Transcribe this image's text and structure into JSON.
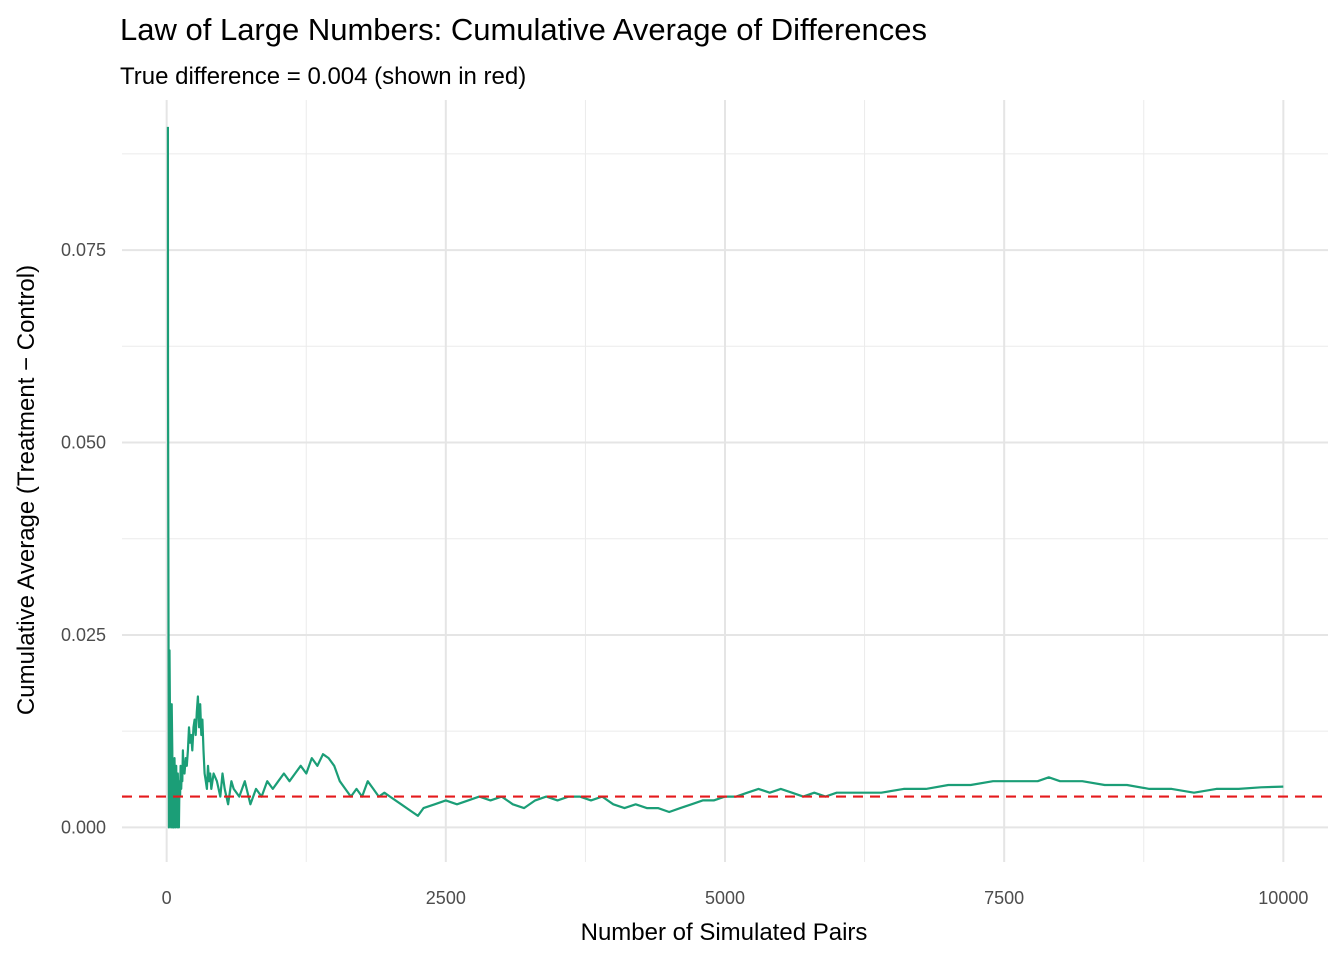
{
  "chart_data": {
    "type": "line",
    "title": "Law of Large Numbers: Cumulative Average of Differences",
    "subtitle": "True difference = 0.004 (shown in red)",
    "xlabel": "Number of Simulated Pairs",
    "ylabel": "Cumulative Average (Treatment − Control)",
    "xlim": [
      -400,
      10400
    ],
    "ylim": [
      -0.0045,
      0.0945
    ],
    "x_ticks": [
      0,
      2500,
      5000,
      7500,
      10000
    ],
    "x_tick_labels": [
      "0",
      "2500",
      "5000",
      "7500",
      "10000"
    ],
    "y_ticks": [
      0,
      0.025,
      0.05,
      0.075
    ],
    "y_tick_labels": [
      "0.000",
      "0.025",
      "0.050",
      "0.075"
    ],
    "grid": true,
    "legend": "none",
    "reference_line": {
      "y": 0.004,
      "color": "#e41a1c",
      "style": "dashed"
    },
    "series": [
      {
        "color": "#1b9e77",
        "x": [
          11,
          12,
          15,
          20,
          25,
          30,
          35,
          40,
          45,
          50,
          55,
          60,
          65,
          70,
          75,
          80,
          85,
          90,
          95,
          100,
          105,
          110,
          115,
          120,
          125,
          130,
          135,
          140,
          145,
          150,
          160,
          170,
          180,
          190,
          200,
          210,
          220,
          230,
          240,
          250,
          260,
          270,
          280,
          290,
          300,
          310,
          320,
          330,
          340,
          350,
          360,
          370,
          380,
          390,
          400,
          420,
          450,
          480,
          500,
          520,
          550,
          580,
          600,
          650,
          700,
          750,
          800,
          850,
          900,
          950,
          1000,
          1050,
          1100,
          1150,
          1200,
          1250,
          1300,
          1350,
          1400,
          1450,
          1500,
          1550,
          1600,
          1650,
          1700,
          1750,
          1800,
          1850,
          1900,
          1950,
          2000,
          2100,
          2200,
          2250,
          2300,
          2400,
          2500,
          2600,
          2700,
          2800,
          2900,
          3000,
          3100,
          3200,
          3300,
          3400,
          3500,
          3600,
          3700,
          3800,
          3900,
          4000,
          4100,
          4200,
          4300,
          4400,
          4500,
          4600,
          4700,
          4800,
          4900,
          5000,
          5100,
          5200,
          5300,
          5400,
          5500,
          5600,
          5700,
          5800,
          5900,
          6000,
          6200,
          6400,
          6600,
          6800,
          7000,
          7200,
          7400,
          7600,
          7800,
          7900,
          8000,
          8200,
          8400,
          8600,
          8800,
          9000,
          9200,
          9400,
          9600,
          9800,
          10000
        ],
        "values": [
          0.091,
          0.06,
          0.04,
          0.0,
          0.023,
          0.014,
          0.008,
          0.0,
          0.016,
          0.01,
          0.0,
          0.006,
          0.0,
          0.009,
          0.005,
          0.0,
          0.008,
          0.003,
          0.0,
          0.007,
          0.004,
          0.0,
          0.006,
          0.004,
          0.008,
          0.005,
          0.007,
          0.006,
          0.01,
          0.008,
          0.007,
          0.009,
          0.008,
          0.01,
          0.013,
          0.011,
          0.012,
          0.01,
          0.013,
          0.014,
          0.012,
          0.015,
          0.017,
          0.013,
          0.016,
          0.012,
          0.014,
          0.01,
          0.007,
          0.006,
          0.005,
          0.008,
          0.006,
          0.007,
          0.005,
          0.007,
          0.006,
          0.004,
          0.007,
          0.005,
          0.003,
          0.006,
          0.005,
          0.004,
          0.006,
          0.003,
          0.005,
          0.004,
          0.006,
          0.005,
          0.006,
          0.007,
          0.006,
          0.007,
          0.008,
          0.007,
          0.009,
          0.008,
          0.0095,
          0.009,
          0.008,
          0.006,
          0.005,
          0.004,
          0.005,
          0.004,
          0.006,
          0.005,
          0.004,
          0.0045,
          0.004,
          0.003,
          0.002,
          0.0015,
          0.0025,
          0.003,
          0.0035,
          0.003,
          0.0035,
          0.004,
          0.0035,
          0.004,
          0.003,
          0.0025,
          0.0035,
          0.004,
          0.0035,
          0.004,
          0.004,
          0.0035,
          0.004,
          0.003,
          0.0025,
          0.003,
          0.0025,
          0.0025,
          0.002,
          0.0025,
          0.003,
          0.0035,
          0.0035,
          0.004,
          0.004,
          0.0045,
          0.005,
          0.0045,
          0.005,
          0.0045,
          0.004,
          0.0045,
          0.004,
          0.0045,
          0.0045,
          0.0045,
          0.005,
          0.005,
          0.0055,
          0.0055,
          0.006,
          0.006,
          0.006,
          0.0065,
          0.006,
          0.006,
          0.0055,
          0.0055,
          0.005,
          0.005,
          0.0045,
          0.005,
          0.005,
          0.0052,
          0.0053
        ]
      }
    ]
  }
}
